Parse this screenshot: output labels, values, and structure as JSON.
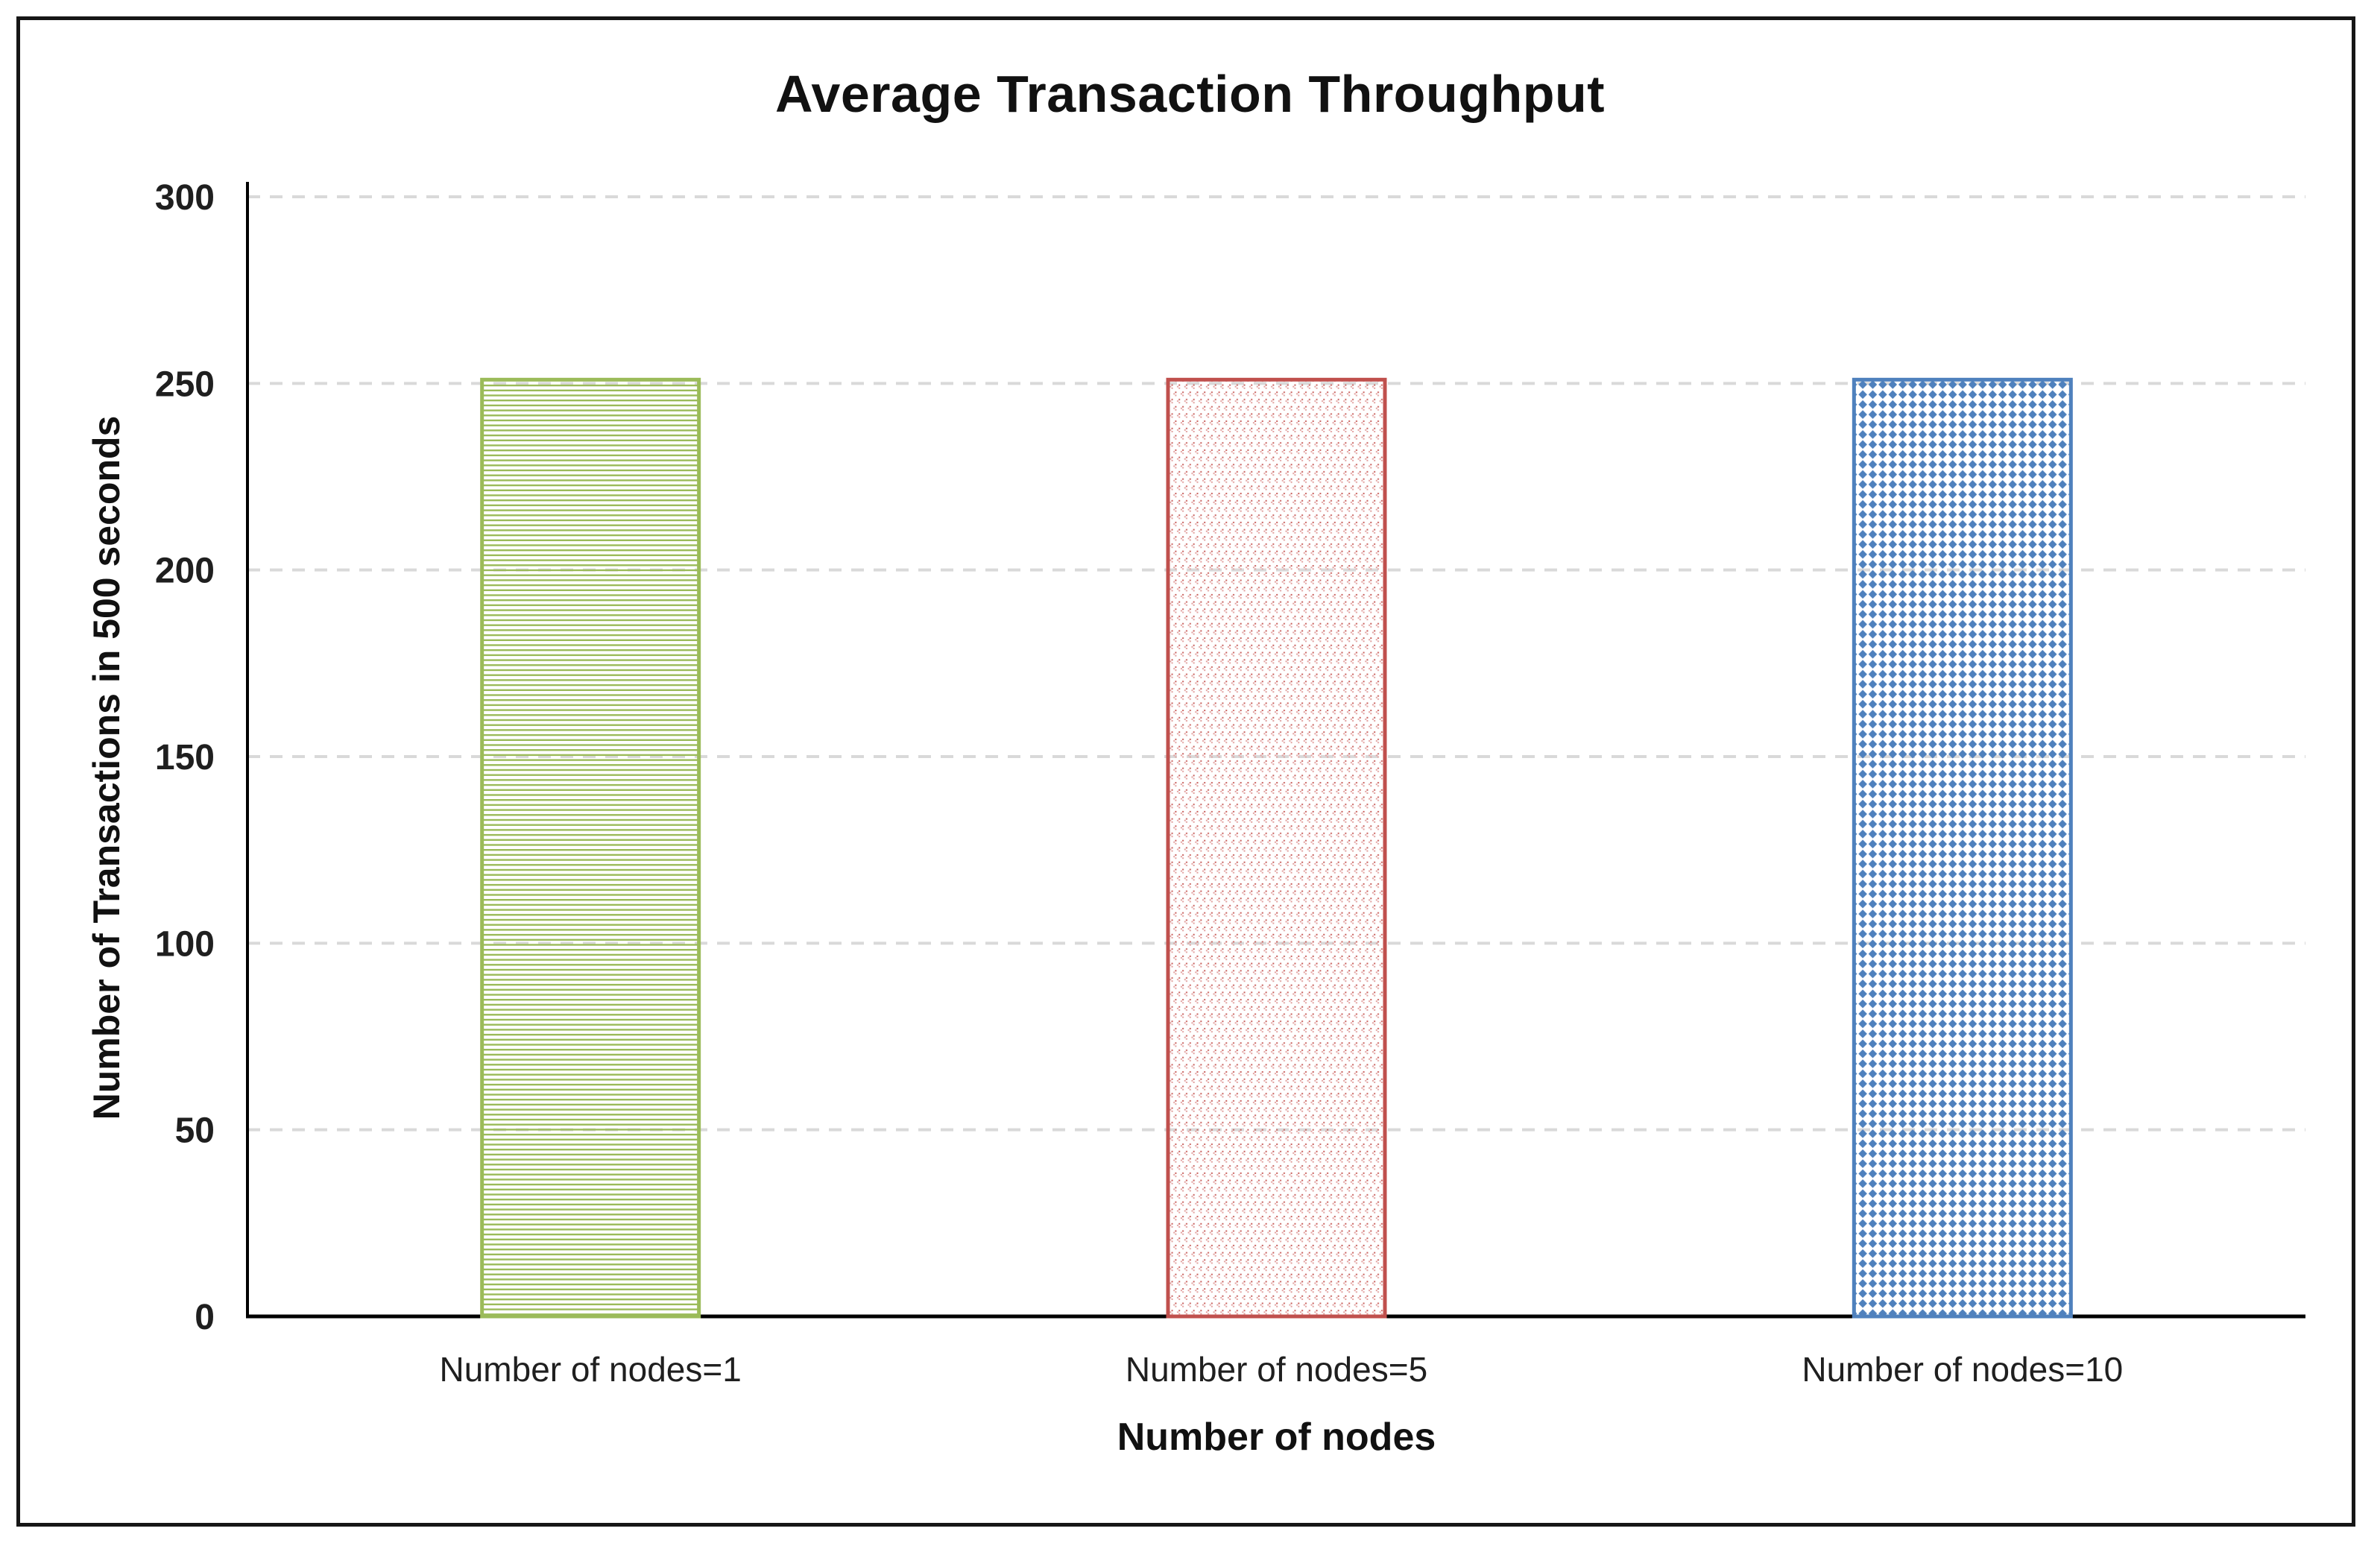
{
  "page": {
    "background": "#ffffff",
    "frame_border_color": "#161616"
  },
  "chart_data": {
    "type": "bar",
    "title": "Average Transaction Throughput",
    "xlabel": "Number of nodes",
    "ylabel": "Number of Transactions in 500 seconds",
    "categories": [
      "Number of nodes=1",
      "Number of nodes=5",
      "Number of nodes=10"
    ],
    "values": [
      251,
      251,
      251
    ],
    "ylim": [
      0,
      300
    ],
    "yticks": [
      0,
      50,
      100,
      150,
      200,
      250,
      300
    ],
    "grid": "horizontal-dashed",
    "gridline_color": "#D9D9D9",
    "axis_color": "#000000",
    "text_color": "#1f1f1f",
    "legend": "none",
    "series_styles": [
      {
        "name": "Number of nodes=1",
        "color": "#9BBB59",
        "fill_light": "#a7c46f",
        "pattern": "horizontal-lines"
      },
      {
        "name": "Number of nodes=5",
        "color": "#C0504D",
        "fill_light": "#e2a19f",
        "fill_dark": "#c9615e",
        "pattern": "dot-clusters"
      },
      {
        "name": "Number of nodes=10",
        "color": "#4F81BD",
        "fill_light": "#5586bf",
        "pattern": "diamond-grid"
      }
    ]
  }
}
